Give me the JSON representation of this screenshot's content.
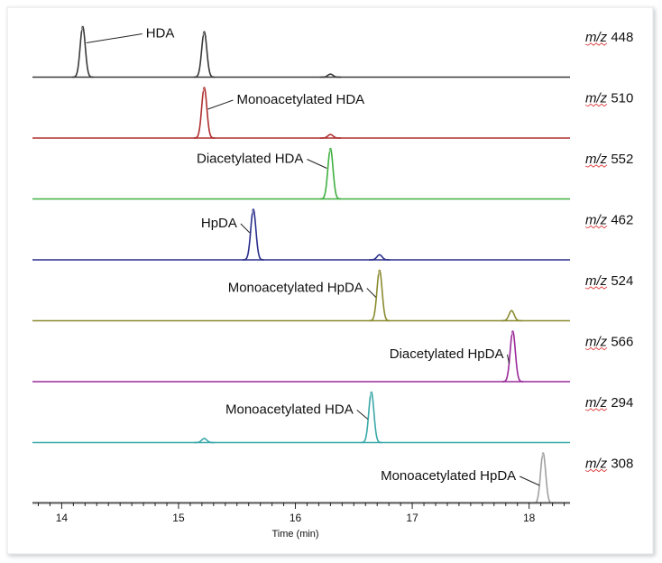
{
  "chart_data": {
    "type": "line",
    "xlabel": "Time (min)",
    "xlim": [
      13.75,
      18.35
    ],
    "xticks": [
      14,
      15,
      16,
      17,
      18
    ],
    "tick_labels": [
      "14",
      "15",
      "16",
      "17",
      "18"
    ],
    "series": [
      {
        "mz_prefix": "m/z",
        "mz_value": "448",
        "color": "#3a3a3a",
        "peaks": [
          {
            "x": 14.18,
            "height": 1.0
          },
          {
            "x": 15.22,
            "height": 0.9
          },
          {
            "x": 16.3,
            "height": 0.06
          }
        ],
        "labels": [
          {
            "text": "HDA",
            "peak": 0
          }
        ]
      },
      {
        "mz_prefix": "m/z",
        "mz_value": "510",
        "color": "#b03030",
        "peaks": [
          {
            "x": 15.22,
            "height": 1.0
          },
          {
            "x": 16.3,
            "height": 0.07
          }
        ],
        "labels": [
          {
            "text": "Monoacetylated HDA",
            "peak": 0
          }
        ]
      },
      {
        "mz_prefix": "m/z",
        "mz_value": "552",
        "color": "#40b040",
        "peaks": [
          {
            "x": 16.3,
            "height": 1.0
          }
        ],
        "labels": [
          {
            "text": "Diacetylated HDA",
            "peak": 0
          }
        ]
      },
      {
        "mz_prefix": "m/z",
        "mz_value": "462",
        "color": "#2a2e8c",
        "peaks": [
          {
            "x": 15.64,
            "height": 1.0
          },
          {
            "x": 16.72,
            "height": 0.1
          }
        ],
        "labels": [
          {
            "text": "HpDA",
            "peak": 0
          }
        ]
      },
      {
        "mz_prefix": "m/z",
        "mz_value": "524",
        "color": "#8a8a30",
        "peaks": [
          {
            "x": 16.72,
            "height": 1.0
          },
          {
            "x": 17.85,
            "height": 0.2
          }
        ],
        "labels": [
          {
            "text": "Monoacetylated HpDA",
            "peak": 0
          }
        ]
      },
      {
        "mz_prefix": "m/z",
        "mz_value": "566",
        "color": "#9a2a9a",
        "peaks": [
          {
            "x": 17.86,
            "height": 1.0
          }
        ],
        "labels": [
          {
            "text": "Diacetylated HpDA",
            "peak": 0
          }
        ]
      },
      {
        "mz_prefix": "m/z",
        "mz_value": "294",
        "color": "#3aa8a8",
        "peaks": [
          {
            "x": 15.22,
            "height": 0.08
          },
          {
            "x": 16.65,
            "height": 1.0
          }
        ],
        "labels": [
          {
            "text": "Monoacetylated HDA",
            "peak": 1
          }
        ]
      },
      {
        "mz_prefix": "m/z",
        "mz_value": "308",
        "color": "#a0a0a0",
        "peaks": [
          {
            "x": 18.12,
            "height": 1.0
          }
        ],
        "labels": [
          {
            "text": "Monoacetylated HpDA",
            "peak": 0
          }
        ]
      }
    ]
  }
}
